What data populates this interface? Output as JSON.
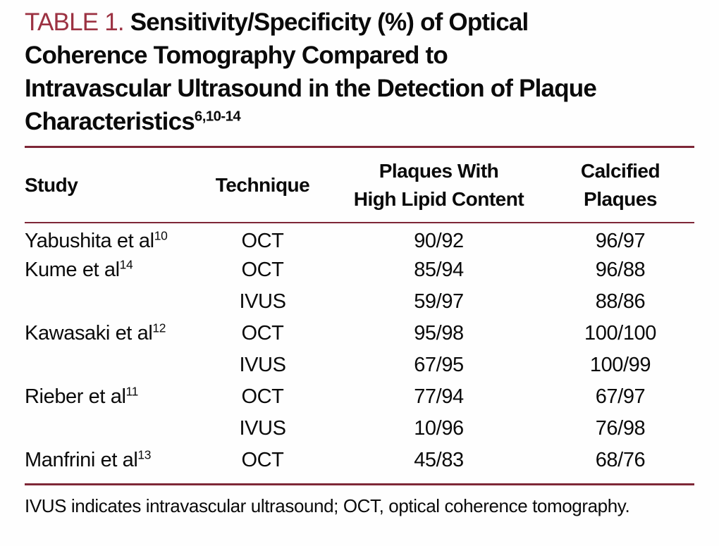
{
  "colors": {
    "accent_maroon_text": "#9c3242",
    "rule_maroon": "#7e2737",
    "body_text": "#0a0a0a",
    "background": "#fefefe"
  },
  "title": {
    "label": "TABLE 1.",
    "line1_rest": "Sensitivity/Specificity (%) of Optical",
    "line2": "Coherence Tomography Compared to",
    "line3": "Intravascular Ultrasound in the Detection of Plaque",
    "line4_base": "Characteristics",
    "line4_sup": "6,10-14"
  },
  "table": {
    "headers": {
      "study": "Study",
      "technique": "Technique",
      "lipid_line1": "Plaques With",
      "lipid_line2": "High Lipid Content",
      "calcified_line1": "Calcified",
      "calcified_line2": "Plaques"
    },
    "rows": [
      {
        "study": "Yabushita et al",
        "ref": "10",
        "technique": "OCT",
        "lipid": "90/92",
        "calcified": "96/97"
      },
      {
        "study": "Kume et al",
        "ref": "14",
        "technique": "OCT",
        "lipid": "85/94",
        "calcified": "96/88"
      },
      {
        "study": "",
        "ref": "",
        "technique": "IVUS",
        "lipid": "59/97",
        "calcified": "88/86"
      },
      {
        "study": "Kawasaki et al",
        "ref": "12",
        "technique": "OCT",
        "lipid": "95/98",
        "calcified": "100/100"
      },
      {
        "study": "",
        "ref": "",
        "technique": "IVUS",
        "lipid": "67/95",
        "calcified": "100/99"
      },
      {
        "study": "Rieber et al",
        "ref": "11",
        "technique": "OCT",
        "lipid": "77/94",
        "calcified": "67/97"
      },
      {
        "study": "",
        "ref": "",
        "technique": "IVUS",
        "lipid": "10/96",
        "calcified": "76/98"
      },
      {
        "study": "Manfrini et al",
        "ref": "13",
        "technique": "OCT",
        "lipid": "45/83",
        "calcified": "68/76"
      }
    ]
  },
  "footnote": "IVUS indicates intravascular ultrasound; OCT, optical coherence tomography."
}
